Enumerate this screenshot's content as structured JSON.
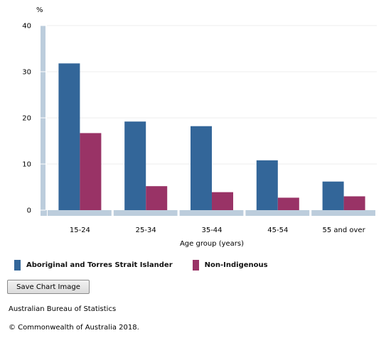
{
  "chart_data": {
    "type": "bar",
    "ylabel": "%",
    "xlabel": "Age group (years)",
    "ylim": [
      0,
      40
    ],
    "yticks": [
      0,
      10,
      20,
      30,
      40
    ],
    "grid": true,
    "legend_position": "bottom",
    "categories": [
      "15-24",
      "25-34",
      "35-44",
      "45-54",
      "55 and over"
    ],
    "series": [
      {
        "name": "Aboriginal and Torres Strait Islander",
        "color": "#336699",
        "values": [
          31.8,
          19.2,
          18.2,
          10.8,
          6.2
        ]
      },
      {
        "name": "Non-Indigenous",
        "color": "#993366",
        "values": [
          16.7,
          5.2,
          3.9,
          2.7,
          3.0
        ]
      }
    ]
  },
  "controls": {
    "save_label": "Save Chart Image"
  },
  "footer": {
    "source": "Australian Bureau of Statistics",
    "copyright": "© Commonwealth of Australia 2018."
  }
}
